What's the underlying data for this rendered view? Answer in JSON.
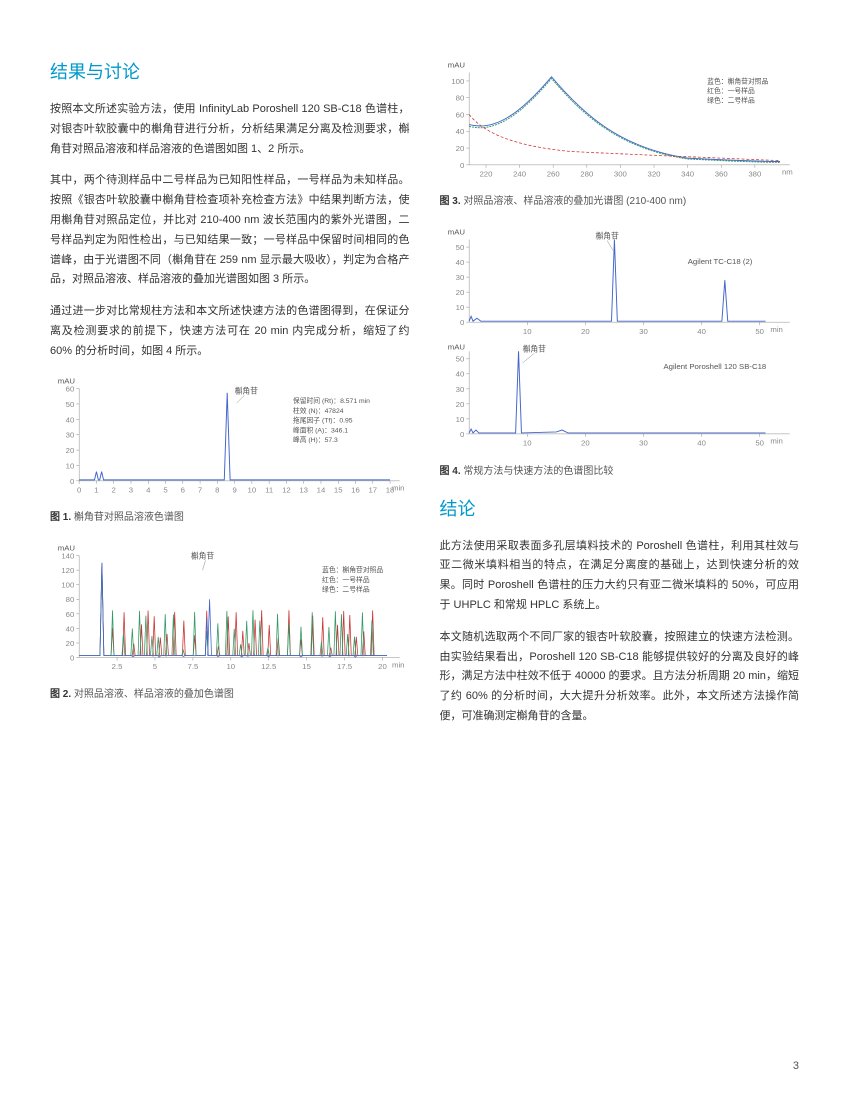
{
  "section1": {
    "title": "结果与讨论",
    "p1": "按照本文所述实验方法，使用 InfinityLab Poroshell 120 SB-C18 色谱柱，对银杏叶软胶囊中的槲角苷进行分析，分析结果满足分离及检测要求，槲角苷对照品溶液和样品溶液的色谱图如图 1、2 所示。",
    "p2": "其中，两个待测样品中二号样品为已知阳性样品，一号样品为未知样品。按照《银杏叶软胶囊中槲角苷检查项补充检查方法》中结果判断方法，使用槲角苷对照品定位，并比对 210-400 nm 波长范围内的紫外光谱图，二号样品判定为阳性检出，与已知结果一致；一号样品中保留时间相同的色谱峰，由于光谱图不同（槲角苷在 259 nm 显示最大吸收），判定为合格产品，对照品溶液、样品溶液的叠加光谱图如图 3 所示。",
    "p3": "通过进一步对比常规柱方法和本文所述快速方法的色谱图得到，在保证分离及检测要求的前提下，快速方法可在 20 min 内完成分析，缩短了约 60% 的分析时间，如图 4 所示。"
  },
  "section2": {
    "title": "结论",
    "p1": "此方法使用采取表面多孔层填料技术的 Poroshell 色谱柱，利用其柱效与亚二微米填料相当的特点，在满足分离度的基础上，达到快速分析的效果。同时 Poroshell 色谱柱的压力大约只有亚二微米填料的 50%，可应用于 UHPLC 和常规 HPLC 系统上。",
    "p2": "本文随机选取两个不同厂家的银杏叶软胶囊，按照建立的快速方法检测。由实验结果看出，Poroshell 120 SB-C18 能够提供较好的分离及良好的峰形，满足方法中柱效不低于 40000 的要求。且方法分析周期 20 min，缩短了约 60% 的分析时间，大大提升分析效率。此外，本文所述方法操作简便，可准确测定槲角苷的含量。"
  },
  "fig1": {
    "caption_label": "图 1.",
    "caption_text": "槲角苷对照品溶液色谱图",
    "y_unit": "mAU",
    "y_ticks": [
      0,
      10,
      20,
      30,
      40,
      50,
      60
    ],
    "x_ticks": [
      0,
      1,
      2,
      3,
      4,
      5,
      6,
      7,
      8,
      9,
      10,
      11,
      12,
      13,
      14,
      15,
      16,
      17,
      18
    ],
    "x_unit": "min",
    "peak_label": "槲角苷",
    "line_color": "#4466cc",
    "annotation": {
      "lines": [
        "保留时间 (Rt)：8.571 min",
        "柱效 (N)：47824",
        "拖尾因子 (Tf)：0.95",
        "峰面积 (A)：346.1",
        "峰高 (H)：57.3"
      ]
    },
    "peak_x": 8.571,
    "peak_height": 57.3,
    "minor_peaks": [
      {
        "x": 1.0,
        "h": 6
      },
      {
        "x": 1.3,
        "h": 6
      }
    ]
  },
  "fig2": {
    "caption_label": "图 2.",
    "caption_text": "对照品溶液、样品溶液的叠加色谱图",
    "y_unit": "mAU",
    "y_ticks": [
      0,
      20,
      40,
      60,
      80,
      100,
      120,
      140
    ],
    "x_ticks": [
      2.5,
      5,
      7.5,
      10,
      12.5,
      15,
      17.5,
      20
    ],
    "x_unit": "min",
    "peak_label": "槲角苷",
    "legend": [
      {
        "color": "#4466cc",
        "label": "蓝色：槲角苷对照品"
      },
      {
        "color": "#cc3333",
        "label": "红色：一号样品"
      },
      {
        "color": "#339966",
        "label": "绿色：二号样品"
      }
    ],
    "colors": {
      "blue": "#4466cc",
      "red": "#cc3333",
      "green": "#339966"
    }
  },
  "fig3": {
    "caption_label": "图 3.",
    "caption_text": "对照品溶液、样品溶液的叠加光谱图 (210-400 nm)",
    "y_unit": "mAU",
    "y_ticks": [
      0,
      20,
      40,
      60,
      80,
      100
    ],
    "x_ticks": [
      220,
      240,
      260,
      280,
      300,
      320,
      340,
      360,
      380
    ],
    "x_unit": "nm",
    "legend": [
      {
        "color": "#4466cc",
        "label": "蓝色：槲角苷对照品"
      },
      {
        "color": "#cc3333",
        "label": "红色：一号样品"
      },
      {
        "color": "#339966",
        "label": "绿色：二号样品"
      }
    ],
    "colors": {
      "blue": "#4466cc",
      "red": "#cc3333",
      "green": "#339966"
    }
  },
  "fig4": {
    "caption_label": "图 4.",
    "caption_text": "常规方法与快速方法的色谱图比较",
    "y_unit": "mAU",
    "panel1": {
      "label": "Agilent TC-C18 (2)",
      "y_ticks": [
        0,
        10,
        20,
        30,
        40,
        50
      ],
      "x_ticks": [
        10,
        20,
        30,
        40,
        50
      ],
      "x_unit": "min",
      "peak_label": "槲角苷",
      "line_color": "#4466cc",
      "peak_x": 25,
      "extra_peak_x": 44
    },
    "panel2": {
      "label": "Agilent Poroshell 120 SB-C18",
      "y_ticks": [
        0,
        10,
        20,
        30,
        40,
        50
      ],
      "x_ticks": [
        10,
        20,
        30,
        40,
        50
      ],
      "x_unit": "min",
      "peak_label": "槲角苷",
      "line_color": "#4466cc",
      "peak_x": 8.5
    }
  },
  "page_number": "3"
}
